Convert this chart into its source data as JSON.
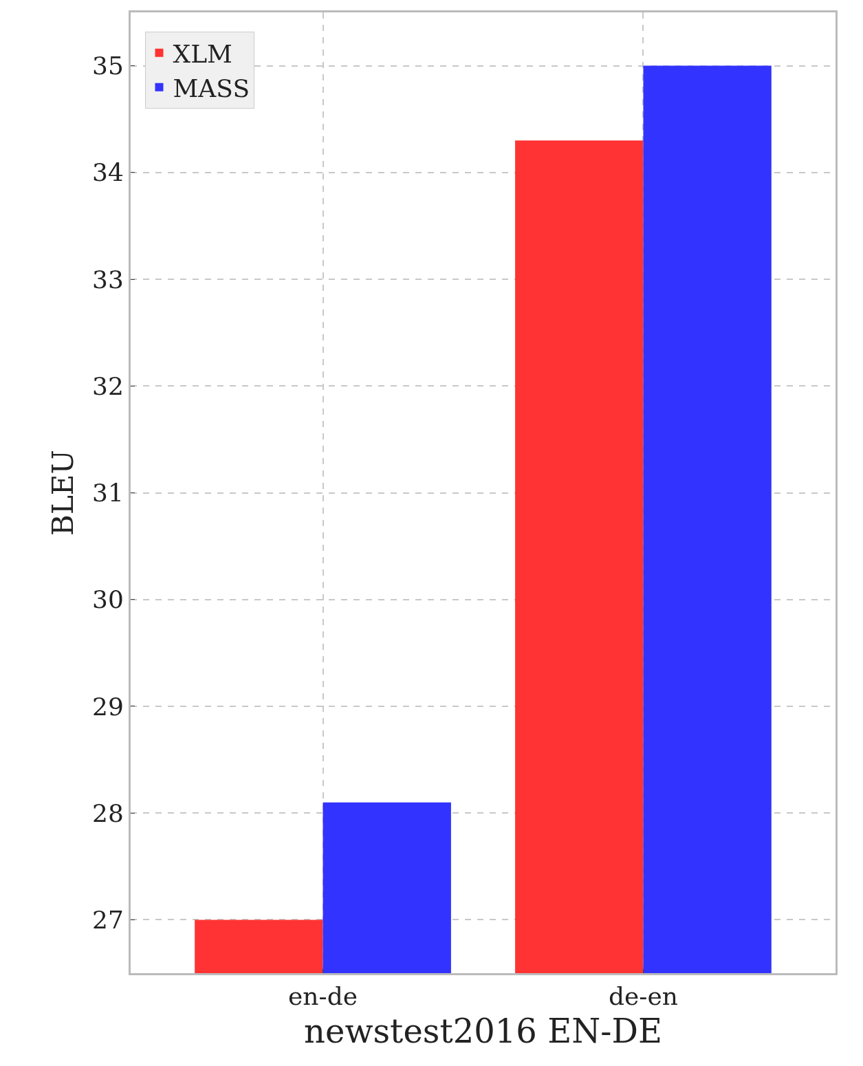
{
  "chart_data": {
    "type": "bar",
    "xlabel": "newstest2016 EN-DE",
    "ylabel": "BLEU",
    "categories": [
      "en-de",
      "de-en"
    ],
    "series": [
      {
        "name": "XLM",
        "color": "#ff3333",
        "values": [
          27.0,
          34.3
        ]
      },
      {
        "name": "MASS",
        "color": "#3333ff",
        "values": [
          28.1,
          35.0
        ]
      }
    ],
    "ylim": [
      26.5,
      35.5
    ],
    "yticks": [
      27,
      28,
      29,
      30,
      31,
      32,
      33,
      34,
      35
    ],
    "grid": true,
    "legend": "top left"
  }
}
